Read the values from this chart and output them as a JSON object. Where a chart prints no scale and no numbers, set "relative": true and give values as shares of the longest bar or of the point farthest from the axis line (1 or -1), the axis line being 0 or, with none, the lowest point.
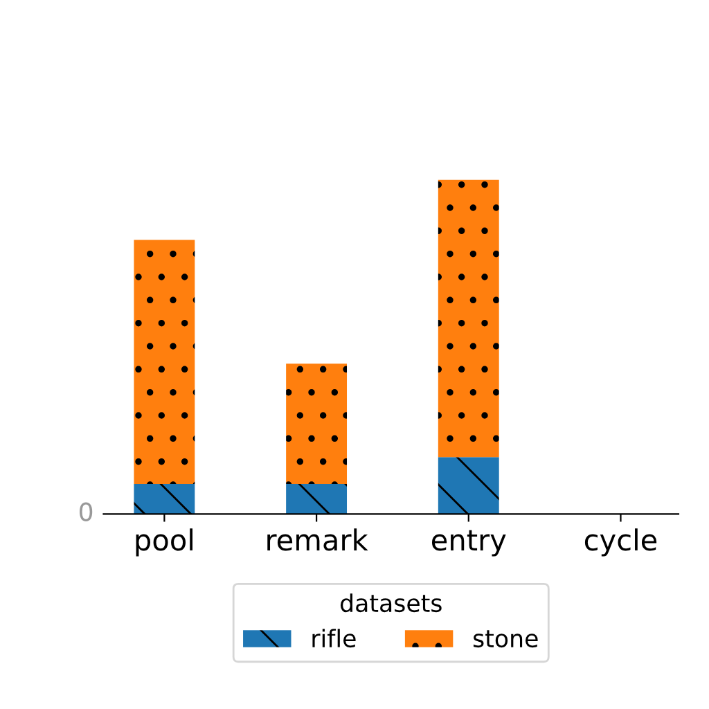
{
  "chart_data": {
    "type": "bar",
    "categories": [
      "pool",
      "remark",
      "entry",
      "cycle"
    ],
    "stacked": true,
    "relative": true,
    "annotations": [
      "0"
    ],
    "legend": "bottom",
    "legend_title": "datasets",
    "series": [
      {
        "name": "rifle",
        "color": "#1f77b4",
        "values": [
          0.09,
          0.09,
          0.17,
          0
        ]
      },
      {
        "name": "stone",
        "color": "#ff7f0e",
        "values": [
          0.73,
          0.36,
          0.83,
          0
        ]
      }
    ]
  }
}
